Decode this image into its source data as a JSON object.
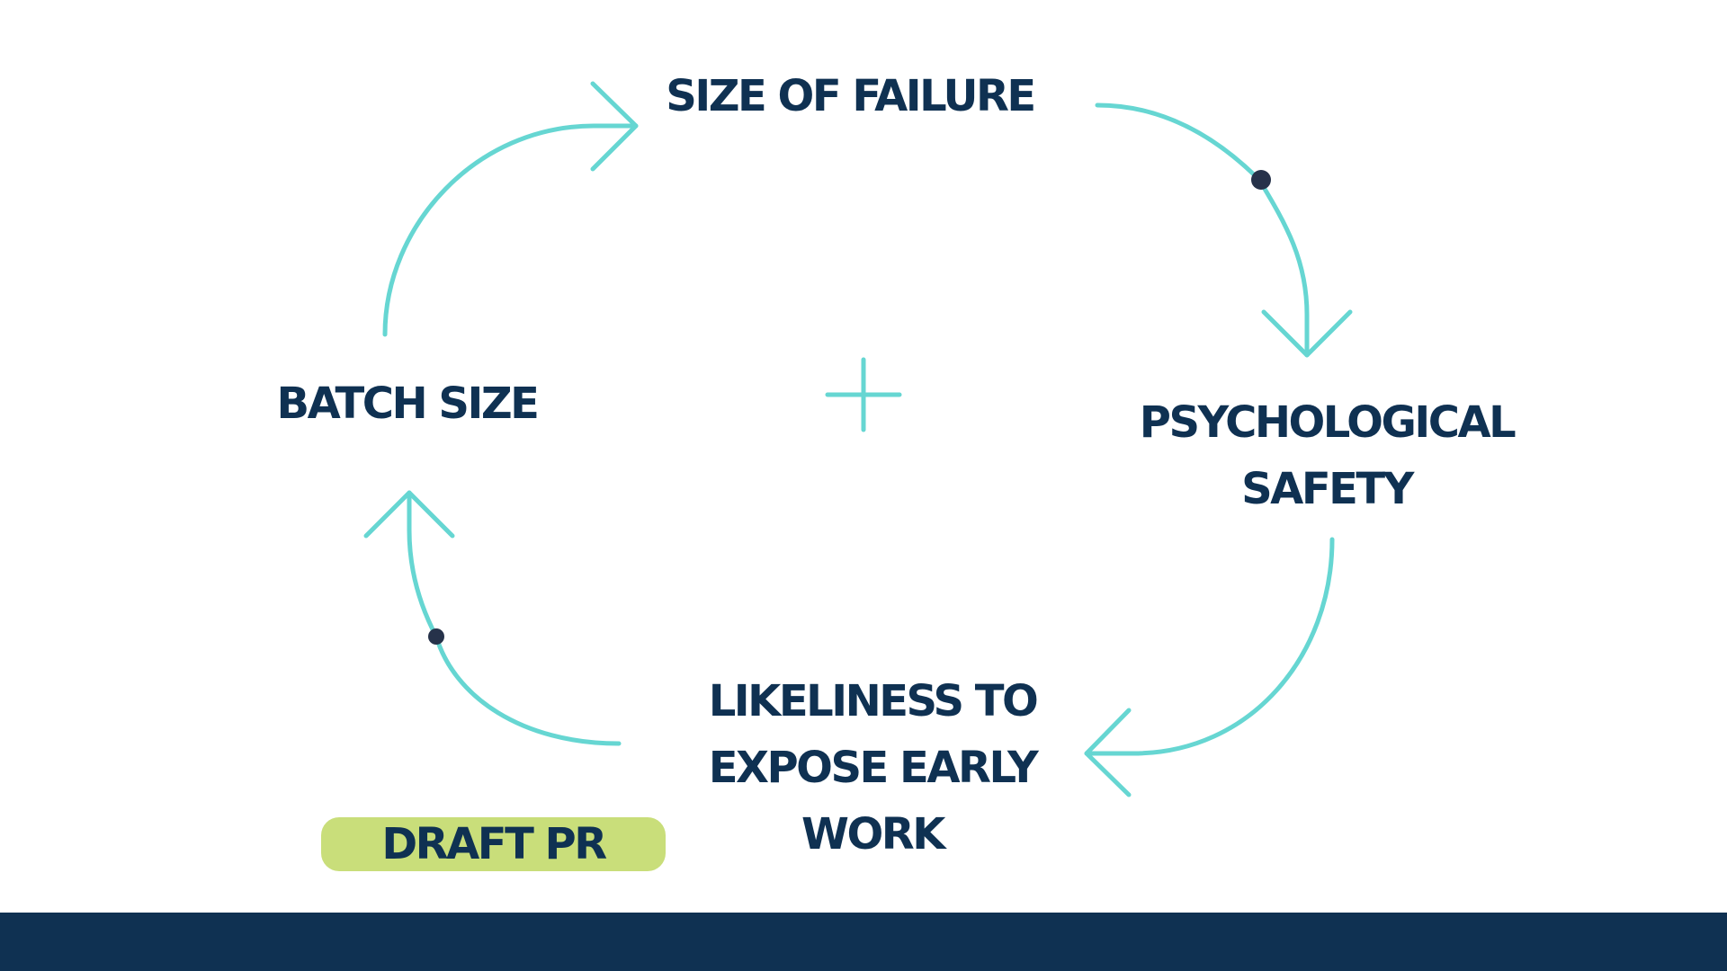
{
  "colors": {
    "background": "#ffffff",
    "text": "#0f3152",
    "arrow": "#66d6d2",
    "dot": "#26324a",
    "badge": "#c9de7a",
    "footer": "#0f3152"
  },
  "nodes": {
    "size_of_failure": {
      "lines": [
        "SIZE OF FAILURE"
      ]
    },
    "psychological_safety": {
      "lines": [
        "PSYCHOLOGICAL",
        "SAFETY"
      ]
    },
    "likeliness": {
      "lines": [
        "LIKELINESS TO",
        "EXPOSE EARLY",
        "WORK"
      ]
    },
    "batch_size": {
      "lines": [
        "BATCH SIZE"
      ]
    }
  },
  "center_symbol": "plus-sign",
  "badge": {
    "label": "DRAFT PR"
  },
  "links": [
    {
      "from": "batch_size",
      "to": "size_of_failure",
      "polarity": "same"
    },
    {
      "from": "size_of_failure",
      "to": "psychological_safety",
      "polarity": "opposite"
    },
    {
      "from": "psychological_safety",
      "to": "likeliness",
      "polarity": "same"
    },
    {
      "from": "likeliness",
      "to": "batch_size",
      "polarity": "opposite"
    }
  ]
}
